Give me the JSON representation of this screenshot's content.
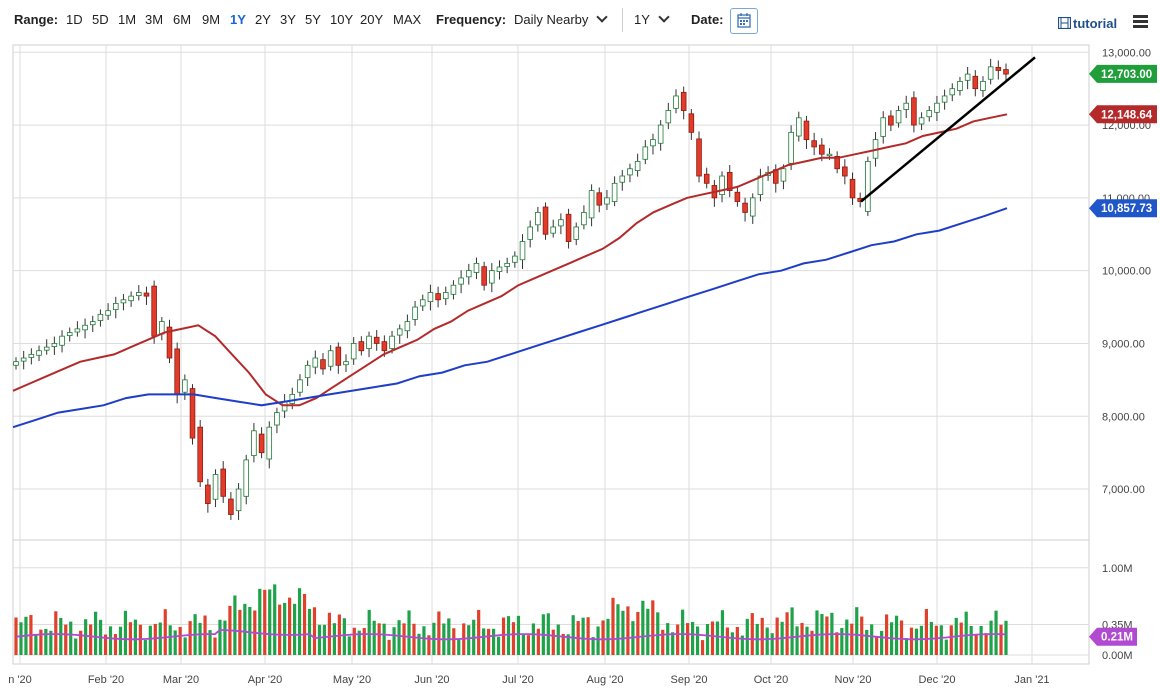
{
  "toolbar": {
    "range_label": "Range:",
    "ranges": [
      "1D",
      "5D",
      "1M",
      "3M",
      "6M",
      "9M",
      "1Y",
      "2Y",
      "3Y",
      "5Y",
      "10Y",
      "20Y",
      "MAX"
    ],
    "active_range": "1Y",
    "frequency_label": "Frequency:",
    "frequency_value": "Daily Nearby",
    "period_value": "1Y",
    "date_label": "Date:",
    "tutorial_label": "tutorial"
  },
  "chart_data": [
    {
      "type": "candlestick",
      "title": "",
      "x_ticks": [
        "n '20",
        "Feb '20",
        "Mar '20",
        "Apr '20",
        "May '20",
        "Jun '20",
        "Jul '20",
        "Aug '20",
        "Sep '20",
        "Oct '20",
        "Nov '20",
        "Dec '20",
        "Jan '21"
      ],
      "y_ticks": [
        "7,000.00",
        "8,000.00",
        "9,000.00",
        "10,000.00",
        "11,000.00",
        "12,000.00",
        "13,000.00"
      ],
      "ylim": [
        6300,
        13100
      ],
      "grid": true,
      "close_approx": [
        8750,
        8800,
        8850,
        8900,
        8950,
        9000,
        9100,
        9150,
        9200,
        9250,
        9300,
        9400,
        9450,
        9550,
        9600,
        9650,
        9700,
        9650,
        9100,
        9300,
        8800,
        8300,
        8500,
        7700,
        7100,
        6800,
        7200,
        6900,
        6650,
        7000,
        7400,
        7800,
        7500,
        7850,
        8050,
        8200,
        8300,
        8500,
        8700,
        8800,
        8650,
        8900,
        8700,
        8750,
        9000,
        8900,
        9100,
        9000,
        8900,
        9100,
        9200,
        9300,
        9500,
        9600,
        9700,
        9600,
        9700,
        9800,
        9900,
        10000,
        10100,
        9800,
        10000,
        10050,
        10100,
        10200,
        10400,
        10600,
        10800,
        10500,
        10600,
        10700,
        10400,
        10600,
        10800,
        11100,
        10900,
        11000,
        11200,
        11300,
        11400,
        11500,
        11700,
        11800,
        12000,
        12200,
        12400,
        12200,
        11900,
        11300,
        11200,
        11000,
        11300,
        11100,
        10950,
        10800,
        11000,
        11300,
        11350,
        11200,
        11400,
        11900,
        12100,
        11800,
        11700,
        11600,
        11600,
        11400,
        11300,
        11000,
        10950,
        11500,
        11800,
        12100,
        12000,
        12200,
        12300,
        12000,
        12100,
        12200,
        12300,
        12400,
        12500,
        12600,
        12700,
        12500,
        12600,
        12800,
        12750,
        12700
      ]
    },
    {
      "type": "line",
      "series": [
        {
          "color": "#b42a2a",
          "values_approx": [
            8350,
            8450,
            8550,
            8650,
            8750,
            8800,
            8850,
            8950,
            9050,
            9150,
            9200,
            9250,
            9100,
            8850,
            8600,
            8300,
            8150,
            8150,
            8250,
            8400,
            8550,
            8700,
            8850,
            8950,
            9050,
            9200,
            9300,
            9450,
            9550,
            9650,
            9800,
            9900,
            10000,
            10100,
            10200,
            10300,
            10450,
            10650,
            10800,
            10900,
            11000,
            11050,
            11100,
            11150,
            11250,
            11350,
            11450,
            11500,
            11550,
            11550,
            11600,
            11650,
            11700,
            11750,
            11850,
            11900,
            11950,
            12050,
            12100,
            12148.64
          ]
        },
        {
          "color": "#1e3ec8",
          "values_approx": [
            7850,
            7950,
            8050,
            8100,
            8150,
            8250,
            8300,
            8300,
            8300,
            8250,
            8200,
            8150,
            8200,
            8250,
            8300,
            8350,
            8400,
            8450,
            8550,
            8600,
            8700,
            8750,
            8850,
            8950,
            9050,
            9150,
            9250,
            9350,
            9450,
            9550,
            9650,
            9750,
            9850,
            9950,
            10000,
            10100,
            10150,
            10250,
            10350,
            10400,
            10500,
            10550,
            10650,
            10750,
            10857.73
          ]
        }
      ]
    },
    {
      "type": "bar",
      "ylabel": "",
      "y_ticks": [
        "1.00M",
        "0.35M",
        "0.00M"
      ],
      "volume_average_label": "0.21M"
    }
  ],
  "price_tags": {
    "last": {
      "label": "12,703.00",
      "color": "#1f9e3a"
    },
    "ma50": {
      "label": "12,148.64",
      "color": "#b42a2a"
    },
    "ma200": {
      "label": "10,857.73",
      "color": "#1f56c8"
    },
    "vol_avg": {
      "label": "0.21M",
      "color": "#b04ad1"
    }
  },
  "colors": {
    "up": "#1fa34a",
    "down": "#e0412a",
    "grid": "#dddddd",
    "trendline": "#000000"
  }
}
